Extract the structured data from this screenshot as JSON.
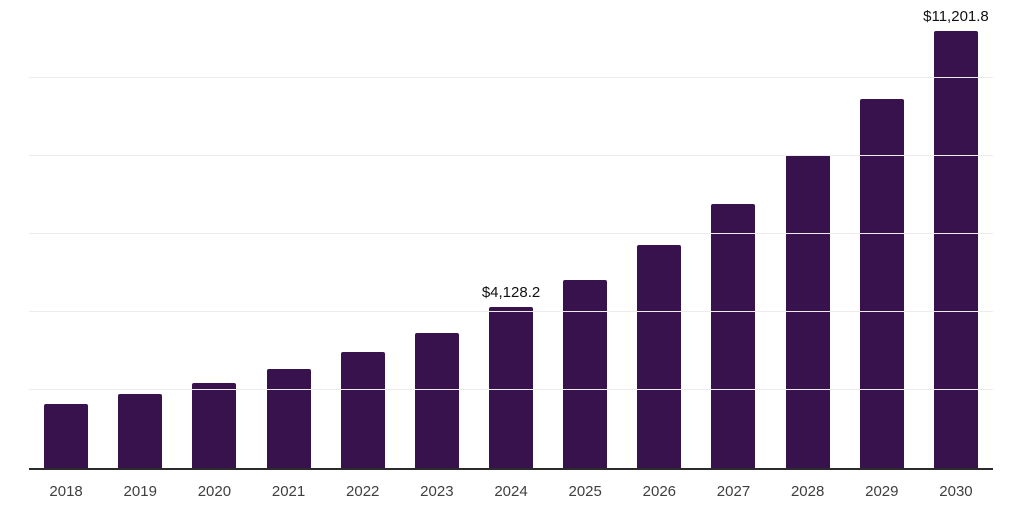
{
  "chart_data": {
    "type": "bar",
    "title": "",
    "xlabel": "",
    "ylabel": "",
    "categories": [
      "2018",
      "2019",
      "2020",
      "2021",
      "2022",
      "2023",
      "2024",
      "2025",
      "2026",
      "2027",
      "2028",
      "2029",
      "2030"
    ],
    "values": [
      1650,
      1890,
      2190,
      2530,
      2970,
      3470,
      4128.2,
      4830,
      5730,
      6760,
      8020,
      9470,
      11201.8
    ],
    "data_labels": [
      "",
      "",
      "",
      "",
      "",
      "",
      "$4,128.2",
      "",
      "",
      "",
      "",
      "",
      "$11,201.8"
    ],
    "ylim": [
      0,
      12000
    ],
    "gridline_step": 2000,
    "grid": "horizontal-only",
    "legend": "none",
    "y_axis_labels_visible": false,
    "colors": {
      "bar": "#38124C",
      "grid": "#ececec",
      "axis_line": "#2b2b2b",
      "tick_label": "#3f3f3f",
      "data_label": "#111111",
      "background": "#ffffff"
    }
  }
}
